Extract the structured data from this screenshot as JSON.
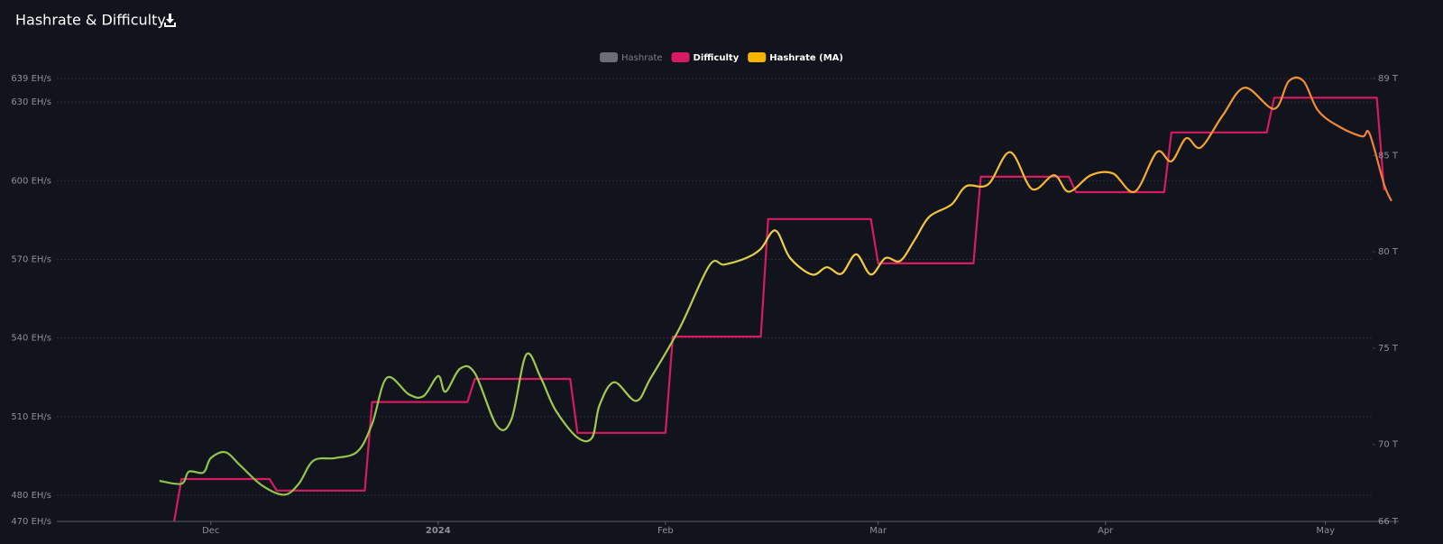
{
  "chart_data": {
    "type": "line",
    "title": "Hashrate & Difficulty",
    "series": [
      {
        "name": "Hashrate",
        "color": "#6b6e78",
        "visible": false,
        "x": [],
        "values": []
      },
      {
        "name": "Difficulty",
        "color": "#d81b60",
        "axis": "y2",
        "x": [
          "2023-11-26",
          "2023-11-27",
          "2023-12-09",
          "2023-12-10",
          "2023-12-22",
          "2023-12-23",
          "2024-01-05",
          "2024-01-06",
          "2024-01-19",
          "2024-01-20",
          "2024-02-01",
          "2024-02-02",
          "2024-02-14",
          "2024-02-15",
          "2024-02-29",
          "2024-03-01",
          "2024-03-14",
          "2024-03-15",
          "2024-03-27",
          "2024-03-28",
          "2024-04-09",
          "2024-04-10",
          "2024-04-23",
          "2024-04-24",
          "2024-05-08",
          "2024-05-09"
        ],
        "values": [
          66,
          68.2,
          68.2,
          67.6,
          67.6,
          72.2,
          72.2,
          73.4,
          73.4,
          70.6,
          70.6,
          75.6,
          75.6,
          81.7,
          81.7,
          79.4,
          79.4,
          83.9,
          83.9,
          83.1,
          83.1,
          86.2,
          86.2,
          88.0,
          88.0,
          83.2
        ]
      },
      {
        "name": "Hashrate (MA)",
        "color": "#f7b500",
        "x": [
          "2023-11-24",
          "2023-11-27",
          "2023-11-28",
          "2023-11-30",
          "2023-12-01",
          "2023-12-03",
          "2023-12-05",
          "2023-12-08",
          "2023-12-11",
          "2023-12-13",
          "2023-12-15",
          "2023-12-18",
          "2023-12-21",
          "2023-12-23",
          "2023-12-25",
          "2023-12-28",
          "2023-12-30",
          "2024-01-01",
          "2024-01-02",
          "2024-01-04",
          "2024-01-06",
          "2024-01-09",
          "2024-01-11",
          "2024-01-13",
          "2024-01-15",
          "2024-01-17",
          "2024-01-20",
          "2024-01-22",
          "2024-01-23",
          "2024-01-25",
          "2024-01-28",
          "2024-01-30",
          "2024-02-03",
          "2024-02-07",
          "2024-02-09",
          "2024-02-12",
          "2024-02-14",
          "2024-02-16",
          "2024-02-18",
          "2024-02-21",
          "2024-02-23",
          "2024-02-25",
          "2024-02-27",
          "2024-02-29",
          "2024-03-02",
          "2024-03-04",
          "2024-03-06",
          "2024-03-08",
          "2024-03-11",
          "2024-03-13",
          "2024-03-16",
          "2024-03-19",
          "2024-03-22",
          "2024-03-25",
          "2024-03-27",
          "2024-03-30",
          "2024-04-02",
          "2024-04-05",
          "2024-04-08",
          "2024-04-10",
          "2024-04-12",
          "2024-04-14",
          "2024-04-17",
          "2024-04-20",
          "2024-04-24",
          "2024-04-26",
          "2024-04-28",
          "2024-04-30",
          "2024-05-03",
          "2024-05-06",
          "2024-05-07",
          "2024-05-09",
          "2024-05-10"
        ],
        "values": [
          485.5,
          484.4,
          489.0,
          488.7,
          494.2,
          496.4,
          491.4,
          483.7,
          480.2,
          484.4,
          493.2,
          494.2,
          496.7,
          507.2,
          524.8,
          518.5,
          517.8,
          525.5,
          519.5,
          528.3,
          526.6,
          506.5,
          509.0,
          533.6,
          524.8,
          512.5,
          502.0,
          502.0,
          514.3,
          523.1,
          516.0,
          524.8,
          544.1,
          567.7,
          568.0,
          570.5,
          574.0,
          581.0,
          570.5,
          564.2,
          567.0,
          564.5,
          571.9,
          564.2,
          570.5,
          569.4,
          577.5,
          586.3,
          590.9,
          597.9,
          598.6,
          610.9,
          596.8,
          602.1,
          595.8,
          602.1,
          602.8,
          595.8,
          610.9,
          607.4,
          616.2,
          612.7,
          625.0,
          635.5,
          627.4,
          638.0,
          638.0,
          626.7,
          620.4,
          616.9,
          618.0,
          598.6,
          592.3
        ]
      }
    ],
    "xlim": [
      "2023-11-10",
      "2024-05-11"
    ],
    "xticks": [
      {
        "value": "2023-12-01",
        "label": "Dec"
      },
      {
        "value": "2024-01-01",
        "label": "2024"
      },
      {
        "value": "2024-02-01",
        "label": "Feb"
      },
      {
        "value": "2024-03-01",
        "label": "Mar"
      },
      {
        "value": "2024-04-01",
        "label": "Apr"
      },
      {
        "value": "2024-05-01",
        "label": "May"
      }
    ],
    "ylim": [
      470,
      639
    ],
    "yticks": [
      {
        "value": 470,
        "label": "470 EH/s"
      },
      {
        "value": 480,
        "label": "480 EH/s"
      },
      {
        "value": 510,
        "label": "510 EH/s"
      },
      {
        "value": 540,
        "label": "540 EH/s"
      },
      {
        "value": 570,
        "label": "570 EH/s"
      },
      {
        "value": 600,
        "label": "600 EH/s"
      },
      {
        "value": 630,
        "label": "630 EH/s"
      },
      {
        "value": 639,
        "label": "639 EH/s"
      }
    ],
    "y2lim": [
      66,
      89
    ],
    "y2ticks": [
      {
        "value": 66,
        "label": "66 T"
      },
      {
        "value": 70,
        "label": "70 T"
      },
      {
        "value": 75,
        "label": "75 T"
      },
      {
        "value": 80,
        "label": "80 T"
      },
      {
        "value": 85,
        "label": "85 T"
      },
      {
        "value": 89,
        "label": "89 T"
      }
    ],
    "grid": true
  }
}
